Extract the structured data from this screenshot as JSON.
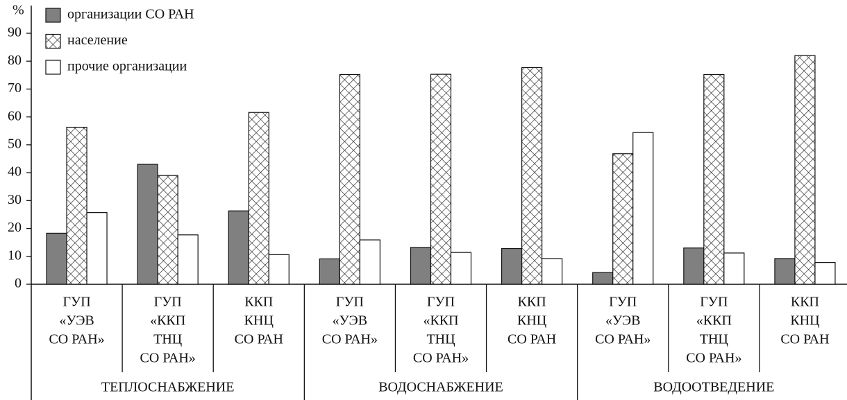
{
  "chart_data": {
    "type": "bar",
    "y_label": "%",
    "categories": [
      [
        "ГУП",
        "«УЭВ",
        "СО РАН»"
      ],
      [
        "ГУП",
        "«ККП",
        "ТНЦ",
        "СО РАН»"
      ],
      [
        "ККП",
        "КНЦ",
        "СО РАН"
      ],
      [
        "ГУП",
        "«УЭВ",
        "СО РАН»"
      ],
      [
        "ГУП",
        "«ККП",
        "ТНЦ",
        "СО РАН»"
      ],
      [
        "ККП",
        "КНЦ",
        "СО РАН"
      ],
      [
        "ГУП",
        "«УЭВ",
        "СО РАН»"
      ],
      [
        "ГУП",
        "«ККП",
        "ТНЦ",
        "СО РАН»"
      ],
      [
        "ККП",
        "КНЦ",
        "СО РАН"
      ]
    ],
    "groups": [
      "ТЕПЛОСНАБЖЕНИЕ",
      "ВОДОСНАБЖЕНИЕ",
      "ВОДООТВЕДЕНИЕ"
    ],
    "series": [
      {
        "name": "организации СО РАН",
        "color": "#808080",
        "values": [
          18.3,
          43,
          26.3,
          9.1,
          13.2,
          12.8,
          4.2,
          13,
          9.2
        ]
      },
      {
        "name": "население",
        "color": "#ffffff",
        "pattern": "crosshatch",
        "values": [
          56.3,
          39,
          61.6,
          75.2,
          75.3,
          77.7,
          46.8,
          75.2,
          82
        ]
      },
      {
        "name": "прочие организации",
        "color": "#ffffff",
        "values": [
          25.7,
          17.7,
          10.6,
          15.9,
          11.4,
          9.2,
          54.4,
          11.2,
          7.8
        ]
      }
    ],
    "ylim": [
      0,
      90
    ],
    "yticks": [
      0,
      10,
      20,
      30,
      40,
      50,
      60,
      70,
      80,
      90
    ],
    "legend": "top-left"
  }
}
